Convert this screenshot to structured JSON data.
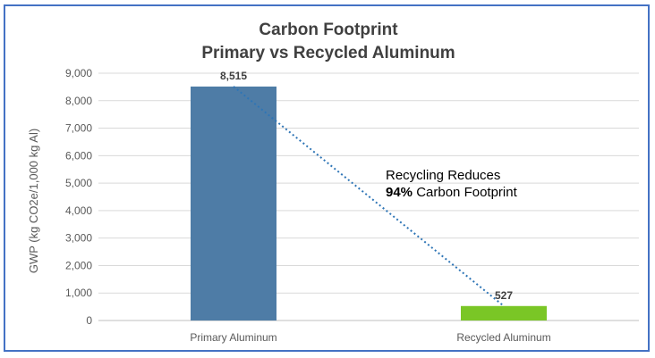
{
  "chart_data": {
    "type": "bar",
    "title": "Carbon Footprint",
    "subtitle": "Primary vs Recycled Aluminum",
    "ylabel": "GWP (kg CO2e/1,000 kg Al)",
    "xlabel": "",
    "categories": [
      "Primary Aluminum",
      "Recycled Aluminum"
    ],
    "values": [
      8515,
      527
    ],
    "data_labels": [
      "8,515",
      "527"
    ],
    "bar_colors": [
      "#4e7ca6",
      "#7ac626"
    ],
    "ylim": [
      0,
      9000
    ],
    "yticks": [
      0,
      1000,
      2000,
      3000,
      4000,
      5000,
      6000,
      7000,
      8000,
      9000
    ],
    "ytick_labels": [
      "0",
      "1,000",
      "2,000",
      "3,000",
      "4,000",
      "5,000",
      "6,000",
      "7,000",
      "8,000",
      "9,000"
    ],
    "grid": true,
    "legend": "none",
    "trendline": {
      "style": "dotted",
      "color": "#2e75b6"
    },
    "annotation": {
      "line1": "Recycling Reduces",
      "line2_bold": "94%",
      "line2_rest": " Carbon Footprint"
    }
  }
}
